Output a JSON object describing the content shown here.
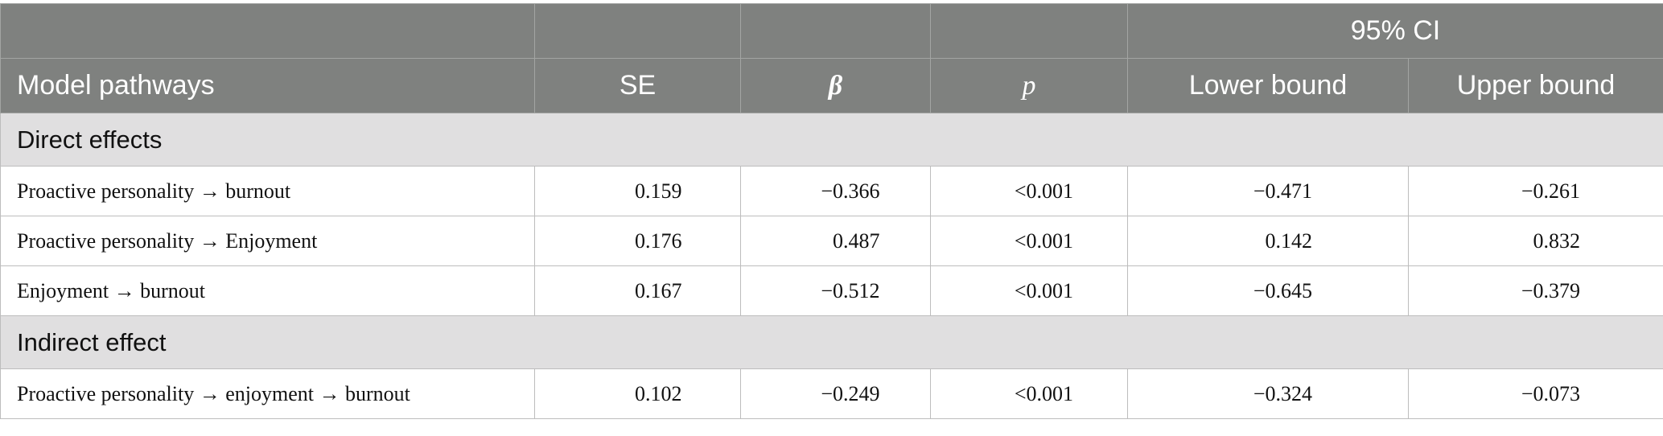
{
  "table": {
    "group_header": "95% CI",
    "columns": [
      "Model pathways",
      "SE",
      "β",
      "p",
      "Lower bound",
      "Upper bound"
    ],
    "sections": [
      {
        "title": "Direct effects",
        "rows": [
          [
            "Proactive personality → burnout",
            "0.159",
            "−0.366",
            "<0.001",
            "−0.471",
            "−0.261"
          ],
          [
            "Proactive personality → Enjoyment",
            "0.176",
            "0.487",
            "<0.001",
            "0.142",
            "0.832"
          ],
          [
            "Enjoyment → burnout",
            "0.167",
            "−0.512",
            "<0.001",
            "−0.645",
            "−0.379"
          ]
        ]
      },
      {
        "title": "Indirect effect",
        "rows": [
          [
            "Proactive personality → enjoyment → burnout",
            "0.102",
            "−0.249",
            "<0.001",
            "−0.324",
            "−0.073"
          ]
        ]
      }
    ]
  }
}
